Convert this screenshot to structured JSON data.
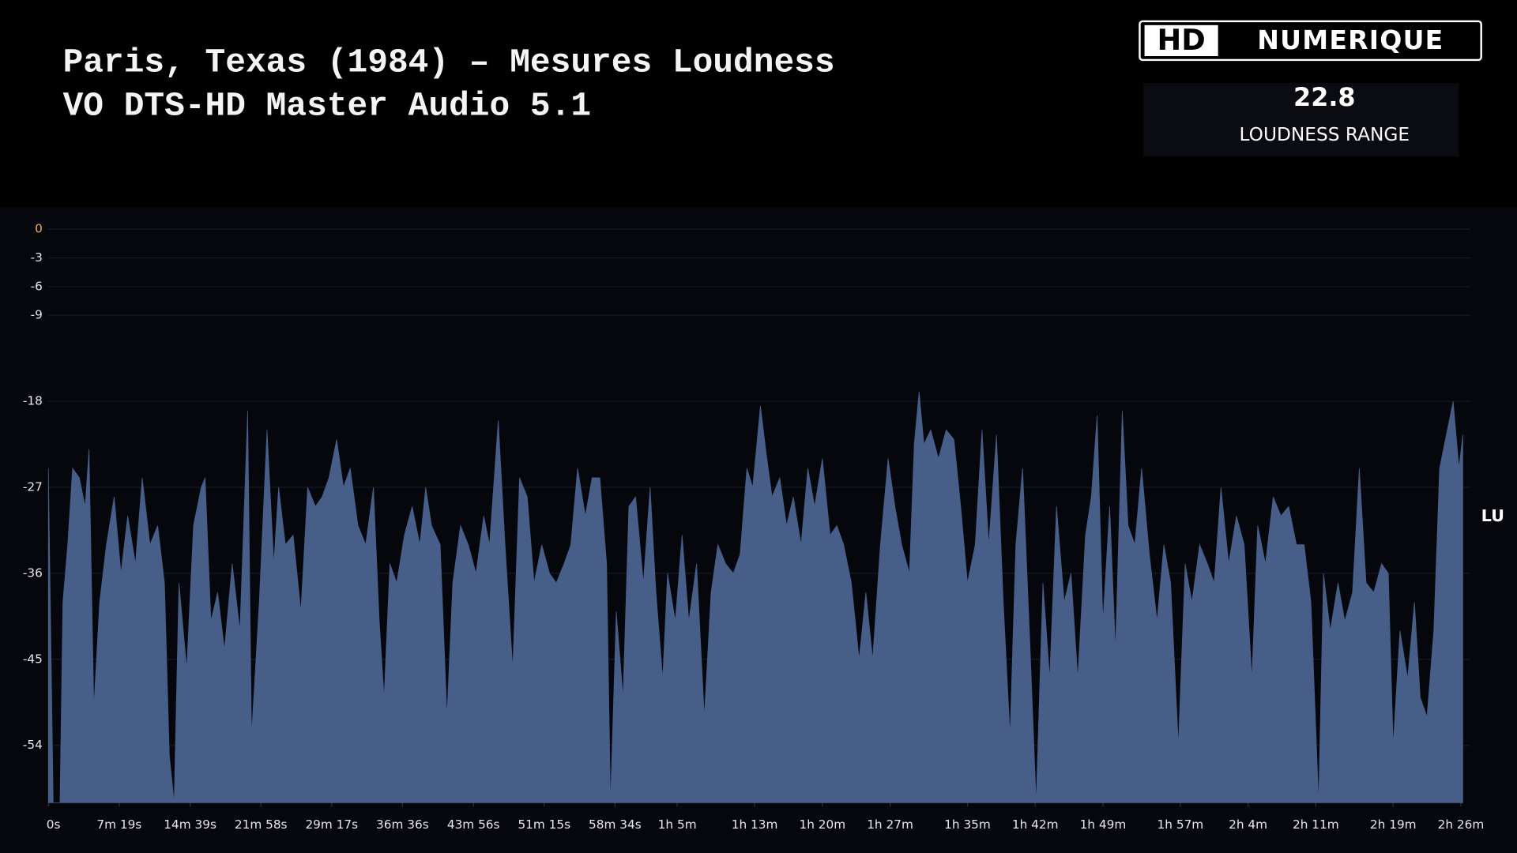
{
  "header": {
    "logo_mark": "HD",
    "logo_text": "NUMERIQUE"
  },
  "stat": {
    "value": 22.8,
    "label": "LOUDNESS RANGE"
  },
  "chart_data": {
    "type": "area",
    "title": "Paris, Texas (1984)  – Mesures Loudness",
    "subtitle": "VO  DTS-HD Master Audio 5.1",
    "y_label": "LU",
    "grid": true,
    "color": "#475f88",
    "zero_tick_color": "#f0b050",
    "xlim": [
      0,
      8784
    ],
    "ylim": [
      -60,
      0
    ],
    "yticks": [
      0,
      -3,
      -6,
      -9,
      -18,
      -27,
      -36,
      -45,
      -54
    ],
    "xticks": [
      {
        "value": 0,
        "label": "0s"
      },
      {
        "value": 439,
        "label": "7m 19s"
      },
      {
        "value": 879,
        "label": "14m 39s"
      },
      {
        "value": 1318,
        "label": "21m 58s"
      },
      {
        "value": 1757,
        "label": "29m 17s"
      },
      {
        "value": 2196,
        "label": "36m 36s"
      },
      {
        "value": 2636,
        "label": "43m 56s"
      },
      {
        "value": 3075,
        "label": "51m 15s"
      },
      {
        "value": 3514,
        "label": "58m 34s"
      },
      {
        "value": 3900,
        "label": "1h 5m"
      },
      {
        "value": 4380,
        "label": "1h 13m"
      },
      {
        "value": 4800,
        "label": "1h 20m"
      },
      {
        "value": 5220,
        "label": "1h 27m"
      },
      {
        "value": 5700,
        "label": "1h 35m"
      },
      {
        "value": 6120,
        "label": "1h 42m"
      },
      {
        "value": 6540,
        "label": "1h 49m"
      },
      {
        "value": 7020,
        "label": "1h 57m"
      },
      {
        "value": 7440,
        "label": "2h 4m"
      },
      {
        "value": 7860,
        "label": "2h 11m"
      },
      {
        "value": 8340,
        "label": "2h 19m"
      },
      {
        "value": 8760,
        "label": "2h 26m"
      }
    ],
    "x": [
      0,
      30,
      72,
      90,
      120,
      150,
      192,
      228,
      252,
      282,
      318,
      360,
      408,
      450,
      492,
      540,
      582,
      630,
      678,
      720,
      750,
      780,
      810,
      858,
      900,
      948,
      972,
      1008,
      1050,
      1092,
      1140,
      1188,
      1236,
      1260,
      1308,
      1356,
      1398,
      1428,
      1470,
      1518,
      1566,
      1608,
      1656,
      1698,
      1740,
      1788,
      1830,
      1872,
      1920,
      1968,
      2016,
      2052,
      2082,
      2118,
      2160,
      2208,
      2256,
      2304,
      2340,
      2376,
      2430,
      2472,
      2508,
      2556,
      2604,
      2652,
      2700,
      2736,
      2790,
      2832,
      2880,
      2922,
      2970,
      3012,
      3060,
      3108,
      3150,
      3198,
      3240,
      3282,
      3330,
      3372,
      3420,
      3462,
      3486,
      3522,
      3564,
      3600,
      3642,
      3690,
      3732,
      3768,
      3810,
      3840,
      3888,
      3930,
      3972,
      4020,
      4068,
      4110,
      4152,
      4200,
      4248,
      4290,
      4332,
      4368,
      4416,
      4452,
      4488,
      4536,
      4578,
      4620,
      4668,
      4710,
      4752,
      4800,
      4848,
      4890,
      4932,
      4980,
      5028,
      5070,
      5112,
      5160,
      5208,
      5250,
      5292,
      5340,
      5370,
      5400,
      5430,
      5472,
      5520,
      5568,
      5616,
      5658,
      5700,
      5748,
      5790,
      5832,
      5880,
      5922,
      5964,
      6000,
      6042,
      6084,
      6126,
      6168,
      6210,
      6252,
      6300,
      6342,
      6384,
      6432,
      6468,
      6504,
      6540,
      6582,
      6618,
      6660,
      6696,
      6738,
      6780,
      6828,
      6876,
      6918,
      6960,
      7008,
      7050,
      7092,
      7140,
      7188,
      7230,
      7272,
      7320,
      7368,
      7416,
      7464,
      7500,
      7548,
      7596,
      7644,
      7692,
      7740,
      7788,
      7830,
      7878,
      7908,
      7950,
      7998,
      8040,
      8088,
      8130,
      8172,
      8220,
      8268,
      8310,
      8340,
      8382,
      8430,
      8472,
      8508,
      8550,
      8592,
      8628,
      8670,
      8712,
      8748,
      8772
    ],
    "values": [
      -25,
      -60,
      -60,
      -39,
      -33,
      -25,
      -26,
      -29,
      -23,
      -50,
      -39,
      -33,
      -28,
      -36,
      -30,
      -35,
      -26,
      -33,
      -31,
      -37,
      -55,
      -60,
      -37,
      -46,
      -31,
      -27,
      -26,
      -41,
      -38,
      -44,
      -35,
      -42,
      -19,
      -53,
      -39,
      -21,
      -35,
      -27,
      -33,
      -32,
      -40,
      -27,
      -29,
      -28,
      -26,
      -22,
      -27,
      -25,
      -31,
      -33,
      -27,
      -41,
      -49,
      -35,
      -37,
      -32,
      -29,
      -33,
      -27,
      -31,
      -33,
      -51,
      -37,
      -31,
      -33,
      -36,
      -30,
      -33,
      -20,
      -33,
      -46,
      -26,
      -28,
      -37,
      -33,
      -36,
      -37,
      -35,
      -33,
      -25,
      -30,
      -26,
      -26,
      -35,
      -60,
      -40,
      -49,
      -29,
      -28,
      -37,
      -27,
      -38,
      -47,
      -36,
      -41,
      -32,
      -41,
      -35,
      -51,
      -38,
      -33,
      -35,
      -36,
      -34,
      -25,
      -27,
      -18.5,
      -23.5,
      -28,
      -26,
      -31,
      -28,
      -33,
      -25,
      -29,
      -24,
      -32,
      -31,
      -33,
      -37,
      -45,
      -38,
      -45,
      -33,
      -24,
      -29,
      -33,
      -36,
      -22.5,
      -17,
      -22.5,
      -21,
      -24,
      -21,
      -22,
      -29,
      -37,
      -33,
      -21,
      -33,
      -21.5,
      -39,
      -53,
      -33,
      -25,
      -42,
      -60,
      -37,
      -47,
      -29,
      -39,
      -36,
      -47,
      -32,
      -28,
      -19.5,
      -41,
      -29,
      -44,
      -19,
      -31,
      -33,
      -25,
      -34,
      -41,
      -33,
      -37,
      -54,
      -35,
      -39,
      -33,
      -35,
      -37,
      -27,
      -35,
      -30,
      -33,
      -47,
      -31,
      -35,
      -28,
      -30,
      -29,
      -33,
      -33,
      -39,
      -60,
      -36,
      -42,
      -37,
      -41,
      -38,
      -25,
      -37,
      -38,
      -35,
      -36,
      -54,
      -42,
      -47,
      -39,
      -49,
      -51,
      -42,
      -25,
      -21.5,
      -18,
      -25,
      -21.5
    ]
  }
}
